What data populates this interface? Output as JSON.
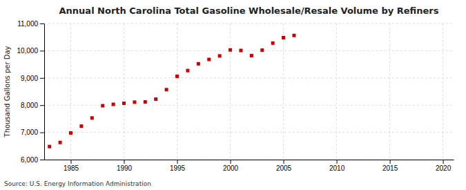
{
  "chart_data": {
    "type": "scatter",
    "title": "Annual North Carolina Total Gasoline Wholesale/Resale Volume by Refiners",
    "ylabel": "Thousand Gallons per Day",
    "source": "Source: U.S. Energy Information Administration",
    "x": [
      1983,
      1984,
      1985,
      1986,
      1987,
      1988,
      1989,
      1990,
      1991,
      1992,
      1993,
      1994,
      1995,
      1996,
      1997,
      1998,
      1999,
      2000,
      2001,
      2002,
      2003,
      2004,
      2005,
      2006
    ],
    "values": [
      6480,
      6630,
      6980,
      7230,
      7530,
      7980,
      8030,
      8070,
      8110,
      8120,
      8220,
      8570,
      9060,
      9270,
      9520,
      9680,
      9810,
      10030,
      10010,
      9820,
      10020,
      10280,
      10480,
      10560
    ],
    "color": "#cc0000",
    "marker": "square",
    "xlim": [
      1982.5,
      2021
    ],
    "xticks": [
      1985,
      1990,
      1995,
      2000,
      2005,
      2010,
      2015,
      2020
    ],
    "ylim": [
      6000,
      11000
    ],
    "yticks": [
      {
        "value": 6000,
        "label": "6,000"
      },
      {
        "value": 7000,
        "label": "7,000"
      },
      {
        "value": 8000,
        "label": "8,000"
      },
      {
        "value": 9000,
        "label": "9,000"
      },
      {
        "value": 10000,
        "label": "10,000"
      },
      {
        "value": 11000,
        "label": "11,000"
      }
    ],
    "grid": true
  }
}
